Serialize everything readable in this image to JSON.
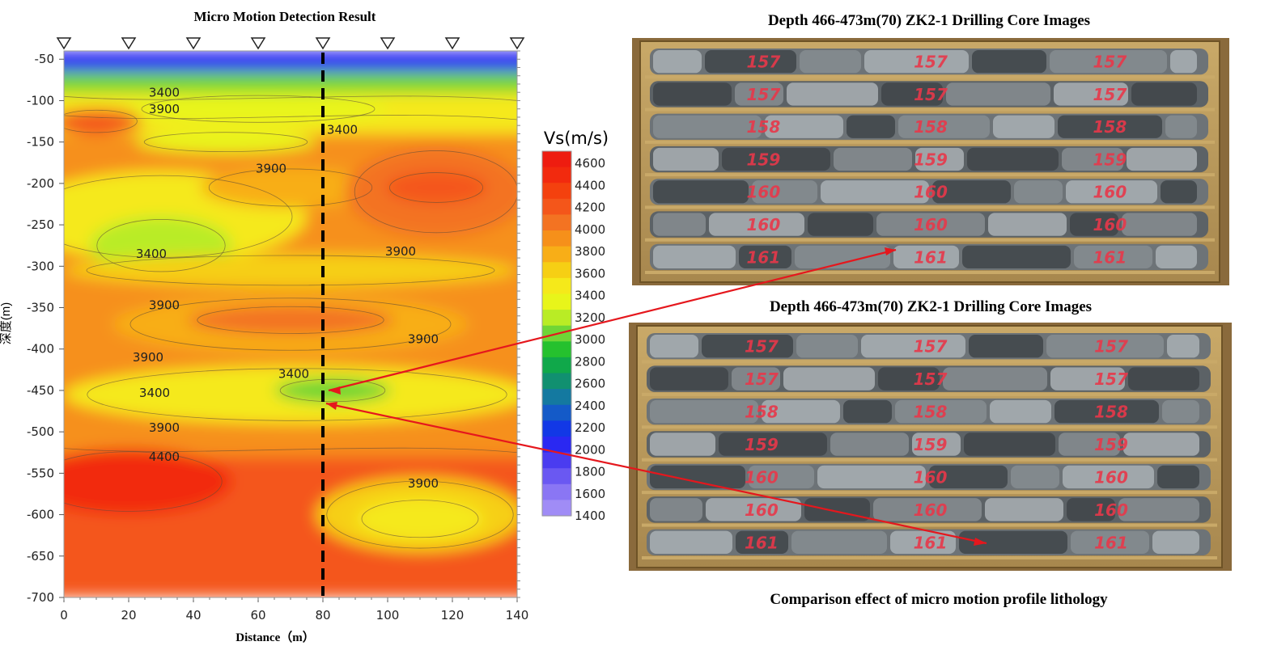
{
  "chart_data": {
    "type": "heatmap",
    "title": "Micro Motion Detection Result",
    "xlabel": "Distance（m）",
    "ylabel": "深度(m)",
    "xlim": [
      0,
      140
    ],
    "ylim": [
      -700,
      -40
    ],
    "x_ticks": [
      0,
      20,
      40,
      60,
      80,
      100,
      120,
      140
    ],
    "y_ticks": [
      -50,
      -100,
      -150,
      -200,
      -250,
      -300,
      -350,
      -400,
      -450,
      -500,
      -550,
      -600,
      -650,
      -700
    ],
    "stations_x": [
      0,
      20,
      40,
      60,
      80,
      100,
      120,
      140
    ],
    "profile_line_x": 80,
    "colorbar": {
      "label": "Vs(m/s)",
      "ticks": [
        4600,
        4400,
        4200,
        4000,
        3800,
        3600,
        3400,
        3200,
        3000,
        2800,
        2600,
        2400,
        2200,
        2000,
        1800,
        1600,
        1400
      ],
      "colors": [
        "#ee1c10",
        "#f22a0e",
        "#f4410e",
        "#f4561a",
        "#f37322",
        "#f6901a",
        "#f8ae17",
        "#f6cf14",
        "#f5e91a",
        "#e8f51a",
        "#b9ec25",
        "#6fd636",
        "#25c12e",
        "#10a84a",
        "#119070",
        "#1479a0",
        "#145ac8",
        "#1238e6",
        "#2a28f2",
        "#4a3cf0",
        "#6a58f2",
        "#8a76f4",
        "#a08cf6"
      ]
    },
    "contour_labels": [
      {
        "text": "3400",
        "x": 31,
        "y": -95
      },
      {
        "text": "3900",
        "x": 31,
        "y": -115
      },
      {
        "text": "3400",
        "x": 86,
        "y": -140
      },
      {
        "text": "3900",
        "x": 64,
        "y": -187
      },
      {
        "text": "3400",
        "x": 27,
        "y": -290
      },
      {
        "text": "3900",
        "x": 104,
        "y": -287
      },
      {
        "text": "3900",
        "x": 31,
        "y": -352
      },
      {
        "text": "3900",
        "x": 111,
        "y": -393
      },
      {
        "text": "3900",
        "x": 26,
        "y": -415
      },
      {
        "text": "3400",
        "x": 71,
        "y": -435
      },
      {
        "text": "3400",
        "x": 28,
        "y": -458
      },
      {
        "text": "3900",
        "x": 31,
        "y": -500
      },
      {
        "text": "4400",
        "x": 31,
        "y": -535
      },
      {
        "text": "3900",
        "x": 111,
        "y": -567
      }
    ],
    "velocity_zones": [
      {
        "xr": [
          0,
          140
        ],
        "yr": [
          -40,
          -75
        ],
        "vs": 2000
      },
      {
        "xr": [
          0,
          140
        ],
        "yr": [
          -65,
          -95
        ],
        "vs": 3000
      },
      {
        "xr": [
          0,
          140
        ],
        "yr": [
          -90,
          -140
        ],
        "vs": 3500
      },
      {
        "xr": [
          0,
          140
        ],
        "yr": [
          -140,
          -600
        ],
        "vs": 3900
      },
      {
        "cx": 10,
        "cy": -125,
        "rx": 14,
        "ry": 15,
        "vs": 4200
      },
      {
        "cx": 60,
        "cy": -110,
        "rx": 40,
        "ry": 18,
        "vs": 3400
      },
      {
        "cx": 50,
        "cy": -150,
        "rx": 28,
        "ry": 13,
        "vs": 3300
      },
      {
        "cx": 30,
        "cy": -240,
        "rx": 45,
        "ry": 55,
        "vs": 3500
      },
      {
        "cx": 30,
        "cy": -275,
        "rx": 22,
        "ry": 35,
        "vs": 3200
      },
      {
        "cx": 70,
        "cy": -205,
        "rx": 28,
        "ry": 25,
        "vs": 3800
      },
      {
        "cx": 115,
        "cy": -210,
        "rx": 28,
        "ry": 55,
        "vs": 4100
      },
      {
        "cx": 115,
        "cy": -205,
        "rx": 16,
        "ry": 20,
        "vs": 4300
      },
      {
        "cx": 70,
        "cy": -305,
        "rx": 70,
        "ry": 20,
        "vs": 3600
      },
      {
        "cx": 70,
        "cy": -370,
        "rx": 55,
        "ry": 35,
        "vs": 3800
      },
      {
        "cx": 70,
        "cy": -365,
        "rx": 32,
        "ry": 18,
        "vs": 4100
      },
      {
        "cx": 72,
        "cy": -455,
        "rx": 72,
        "ry": 35,
        "vs": 3500
      },
      {
        "cx": 83,
        "cy": -450,
        "rx": 18,
        "ry": 15,
        "vs": 3100
      },
      {
        "xr": [
          0,
          140
        ],
        "yr": [
          -530,
          -700
        ],
        "vs": 4200
      },
      {
        "cx": 20,
        "cy": -560,
        "rx": 32,
        "ry": 40,
        "vs": 4500
      },
      {
        "cx": 110,
        "cy": -600,
        "rx": 32,
        "ry": 45,
        "vs": 3700
      },
      {
        "cx": 110,
        "cy": -605,
        "rx": 20,
        "ry": 25,
        "vs": 3500
      },
      {
        "xr": [
          0,
          140
        ],
        "yr": [
          -650,
          -700
        ],
        "vs": 4300
      }
    ]
  },
  "right_panel": {
    "top_caption": "Depth 466-473m(70) ZK2-1  Drilling Core Images",
    "bottom_caption": "Depth 466-473m(70) ZK2-1  Drilling Core Images",
    "footer_caption": "Comparison effect of micro motion profile lithology",
    "core_box_labels": [
      "157",
      "158",
      "159",
      "160",
      "161"
    ],
    "arrow_color": "#e5171d"
  }
}
